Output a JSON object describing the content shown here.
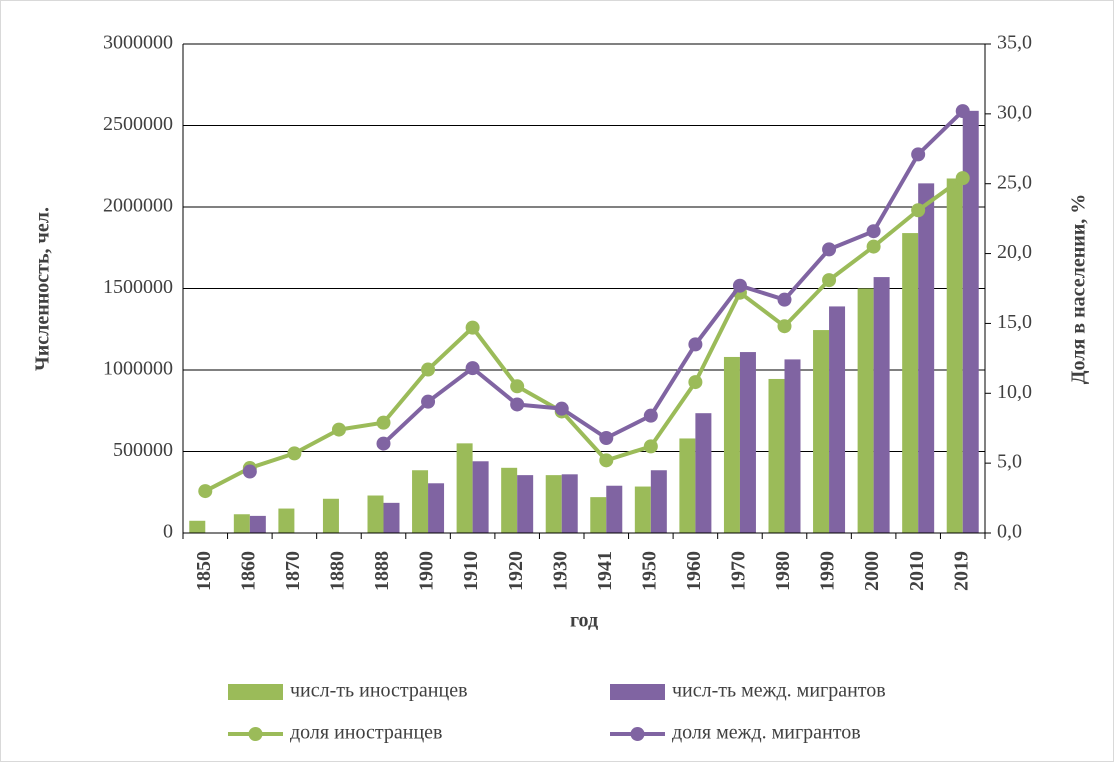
{
  "chart_data": {
    "type": "bar-line",
    "x_label": "год",
    "y_label": "Численность, чел.",
    "y2_label": "Доля в населении, %",
    "categories": [
      "1850",
      "1860",
      "1870",
      "1880",
      "1888",
      "1900",
      "1910",
      "1920",
      "1930",
      "1941",
      "1950",
      "1960",
      "1970",
      "1980",
      "1990",
      "2000",
      "2010",
      "2019"
    ],
    "ylim": [
      0,
      3000000
    ],
    "yticks": [
      0,
      500000,
      1000000,
      1500000,
      2000000,
      2500000,
      3000000
    ],
    "y2lim": [
      0,
      35
    ],
    "y2ticks": [
      {
        "value": 0,
        "label": "0,0"
      },
      {
        "value": 5,
        "label": "5,0"
      },
      {
        "value": 10,
        "label": "10,0"
      },
      {
        "value": 15,
        "label": "15,0"
      },
      {
        "value": 20,
        "label": "20,0"
      },
      {
        "value": 25,
        "label": "25,0"
      },
      {
        "value": 30,
        "label": "30,0"
      },
      {
        "value": 35,
        "label": "35,0"
      }
    ],
    "grid": true,
    "series": [
      {
        "name": "числ-ть иностранцев",
        "type": "bar",
        "color": "#9bbb59",
        "values": [
          75000,
          115000,
          150000,
          210000,
          230000,
          385000,
          550000,
          400000,
          355000,
          220000,
          285000,
          580000,
          1080000,
          945000,
          1245000,
          1500000,
          1840000,
          2175000
        ]
      },
      {
        "name": "числ-ть межд. мигрантов",
        "type": "bar",
        "color": "#8064a2",
        "values": [
          null,
          105000,
          null,
          null,
          185000,
          305000,
          440000,
          355000,
          360000,
          290000,
          385000,
          735000,
          1110000,
          1065000,
          1390000,
          1570000,
          2145000,
          2590000
        ]
      },
      {
        "name": "доля иностранцев",
        "type": "line",
        "axis": "y2",
        "color": "#9bbb59",
        "values": [
          3.0,
          4.65,
          5.7,
          7.4,
          7.9,
          11.7,
          14.7,
          10.5,
          8.7,
          5.2,
          6.2,
          10.8,
          17.2,
          14.8,
          18.1,
          20.5,
          23.1,
          25.4
        ]
      },
      {
        "name": "доля межд. мигрантов",
        "type": "line",
        "axis": "y2",
        "color": "#8064a2",
        "values": [
          null,
          4.4,
          null,
          null,
          6.4,
          9.4,
          11.8,
          9.2,
          8.9,
          6.8,
          8.4,
          13.5,
          17.7,
          16.7,
          20.3,
          21.6,
          27.1,
          30.2
        ]
      }
    ]
  }
}
